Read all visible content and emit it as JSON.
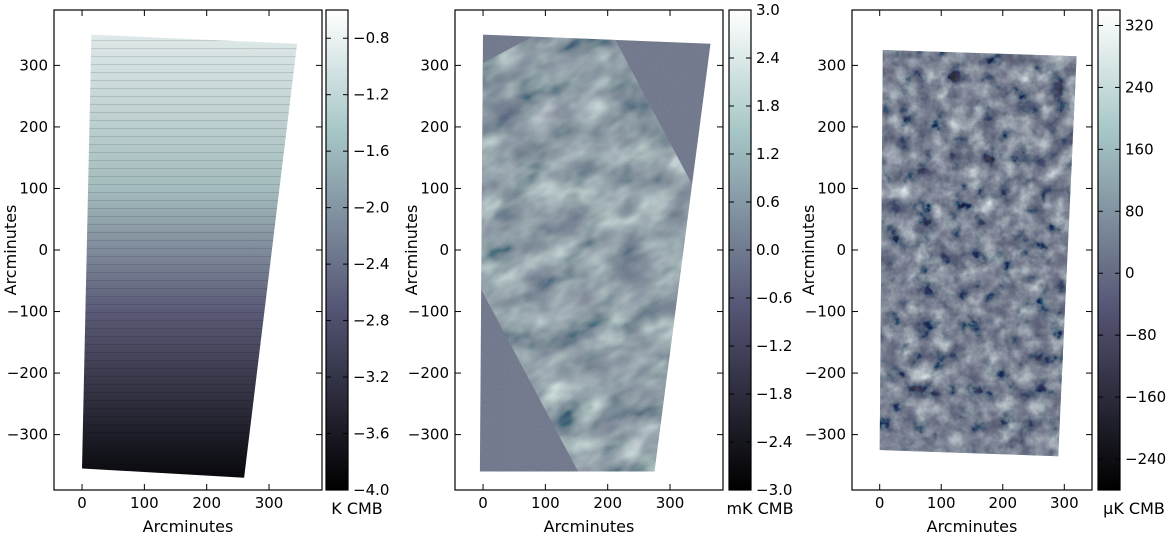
{
  "chart_data": [
    {
      "type": "heatmap",
      "title": "",
      "xlabel": "Arcminutes",
      "ylabel": "Arcminutes",
      "xlim": [
        -45,
        385
      ],
      "ylim": [
        -390,
        390
      ],
      "xticks": [
        0,
        100,
        200,
        300
      ],
      "yticks": [
        -300,
        -200,
        -100,
        0,
        100,
        200,
        300
      ],
      "map_polygon": [
        [
          15,
          350
        ],
        [
          345,
          335
        ],
        [
          260,
          -370
        ],
        [
          0,
          -355
        ]
      ],
      "map_pattern": "gradient",
      "colorbar": {
        "label": "K  CMB",
        "range": [
          -4.0,
          -0.6
        ],
        "ticks": [
          -4.0,
          -3.6,
          -3.2,
          -2.8,
          -2.4,
          -2.0,
          -1.6,
          -1.2,
          -0.8
        ],
        "tick_labels": [
          "−4.0",
          "−3.6",
          "−3.2",
          "−2.8",
          "−2.4",
          "−2.0",
          "−1.6",
          "−1.2",
          "−0.8"
        ]
      }
    },
    {
      "type": "heatmap",
      "title": "",
      "xlabel": "Arcminutes",
      "ylabel": "Arcminutes",
      "xlim": [
        -45,
        385
      ],
      "ylim": [
        -390,
        390
      ],
      "xticks": [
        0,
        100,
        200,
        300
      ],
      "yticks": [
        -300,
        -200,
        -100,
        0,
        100,
        200,
        300
      ],
      "map_polygon": [
        [
          0,
          350
        ],
        [
          365,
          335
        ],
        [
          275,
          -360
        ],
        [
          -5,
          -360
        ]
      ],
      "map_pattern": "stripes",
      "colorbar": {
        "label": "mK  CMB",
        "range": [
          -3.0,
          3.0
        ],
        "ticks": [
          -3.0,
          -2.4,
          -1.8,
          -1.2,
          -0.6,
          0.0,
          0.6,
          1.2,
          1.8,
          2.4,
          3.0
        ],
        "tick_labels": [
          "−3.0",
          "−2.4",
          "−1.8",
          "−1.2",
          "−0.6",
          "0.0",
          "0.6",
          "1.2",
          "1.8",
          "2.4",
          "3.0"
        ]
      }
    },
    {
      "type": "heatmap",
      "title": "",
      "xlabel": "Arcminutes",
      "ylabel": "Arcminutes",
      "xlim": [
        -45,
        345
      ],
      "ylim": [
        -390,
        390
      ],
      "xticks": [
        0,
        100,
        200,
        300
      ],
      "yticks": [
        -300,
        -200,
        -100,
        0,
        100,
        200,
        300
      ],
      "map_polygon": [
        [
          5,
          325
        ],
        [
          320,
          315
        ],
        [
          290,
          -335
        ],
        [
          0,
          -325
        ]
      ],
      "map_pattern": "blobs",
      "colorbar": {
        "label": "μK  CMB",
        "range": [
          -280,
          340
        ],
        "ticks": [
          -240,
          -160,
          -80,
          0,
          80,
          160,
          240,
          320
        ],
        "tick_labels": [
          "−240",
          "−160",
          "−80",
          "0",
          "80",
          "160",
          "240",
          "320"
        ]
      }
    }
  ]
}
